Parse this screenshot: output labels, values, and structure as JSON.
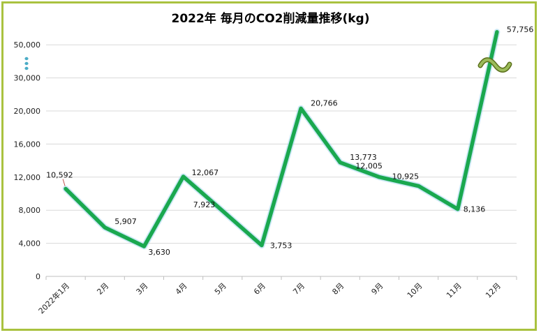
{
  "chart_data": {
    "type": "line",
    "title": "2022年 毎月のCO2削減量推移(kg)",
    "categories": [
      "2022年1月",
      "2月",
      "3月",
      "4月",
      "5月",
      "6月",
      "7月",
      "8月",
      "9月",
      "10月",
      "11月",
      "12月"
    ],
    "values": [
      10592,
      5907,
      3630,
      12067,
      7923,
      3753,
      20766,
      13773,
      12005,
      10925,
      8136,
      57756
    ],
    "value_labels": [
      "10,592",
      "5,907",
      "3,630",
      "12,067",
      "7,923",
      "3,753",
      "20,766",
      "13,773",
      "12,005",
      "10,925",
      "8,136",
      "57,756"
    ],
    "y_tick_labels": [
      "0",
      "4,000",
      "8,000",
      "12,000",
      "16,000",
      "20,000",
      "30,000",
      "50,000"
    ],
    "y_tick_values": [
      0,
      4000,
      8000,
      12000,
      16000,
      20000,
      30000,
      50000
    ],
    "y_axis_broken": true,
    "grid": true,
    "line_color": "#1aa84f",
    "frame_color": "#a9c23f"
  }
}
